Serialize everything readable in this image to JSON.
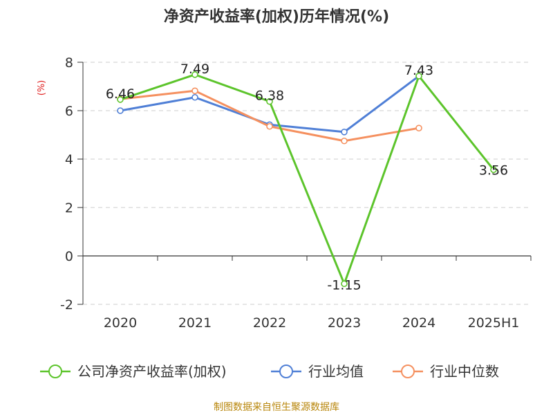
{
  "title": "净资产收益率(加权)历年情况(%)",
  "source": "制图数据来自恒生聚源数据库",
  "chart_data": {
    "type": "line",
    "title": "净资产收益率(加权)历年情况(%)",
    "ylabel": "(%)",
    "ylim": [
      -2,
      8
    ],
    "yticks": [
      -2,
      0,
      2,
      4,
      6,
      8
    ],
    "categories": [
      "2020",
      "2021",
      "2022",
      "2023",
      "2024",
      "2025H1"
    ],
    "grid": true,
    "legend_position": "bottom",
    "series": [
      {
        "name": "公司净资产收益率(加权)",
        "color": "#5cc42b",
        "values": [
          6.46,
          7.49,
          6.38,
          -1.15,
          7.43,
          3.56
        ],
        "labels": true
      },
      {
        "name": "行业均值",
        "color": "#4f7fd6",
        "values": [
          6.0,
          6.55,
          5.42,
          5.12,
          7.43,
          null
        ],
        "labels": false
      },
      {
        "name": "行业中位数",
        "color": "#f5905f",
        "values": [
          6.48,
          6.82,
          5.35,
          4.75,
          5.28,
          null
        ],
        "labels": false
      }
    ]
  }
}
